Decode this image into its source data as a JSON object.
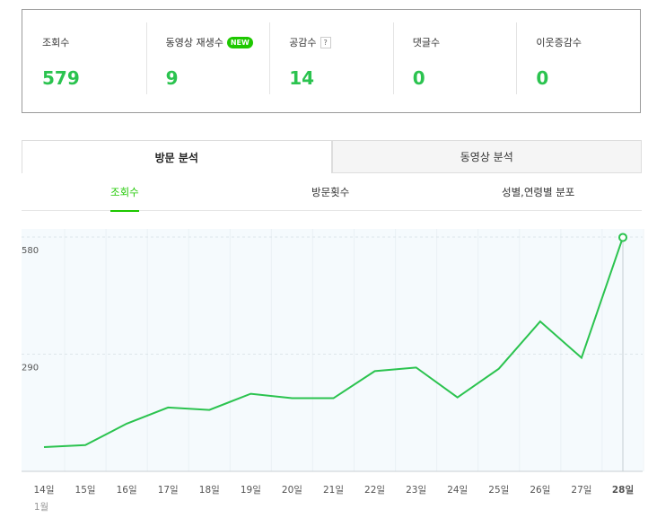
{
  "summary": [
    {
      "label": "조회수",
      "value": "579"
    },
    {
      "label": "동영상 재생수",
      "value": "9",
      "badge": "NEW"
    },
    {
      "label": "공감수",
      "value": "14",
      "help": "?"
    },
    {
      "label": "댓글수",
      "value": "0"
    },
    {
      "label": "이웃증감수",
      "value": "0"
    }
  ],
  "tabs": [
    {
      "label": "방문 분석"
    },
    {
      "label": "동영상 분석"
    }
  ],
  "subtabs": [
    {
      "label": "조회수"
    },
    {
      "label": "방문횟수"
    },
    {
      "label": "성별,연령별 분포"
    }
  ],
  "colors": {
    "accent": "#1ec800",
    "line": "#2bc34f"
  },
  "chart_data": {
    "type": "line",
    "categories": [
      "14일",
      "15일",
      "16일",
      "17일",
      "18일",
      "19일",
      "20일",
      "21일",
      "22일",
      "23일",
      "24일",
      "25일",
      "26일",
      "27일",
      "28일"
    ],
    "values": [
      60,
      65,
      118,
      158,
      152,
      192,
      181,
      181,
      248,
      257,
      183,
      254,
      371,
      281,
      579
    ],
    "yticks": [
      "290",
      "580"
    ],
    "ylim": [
      0,
      580
    ],
    "month_label": "1월",
    "highlight_index": 14
  }
}
